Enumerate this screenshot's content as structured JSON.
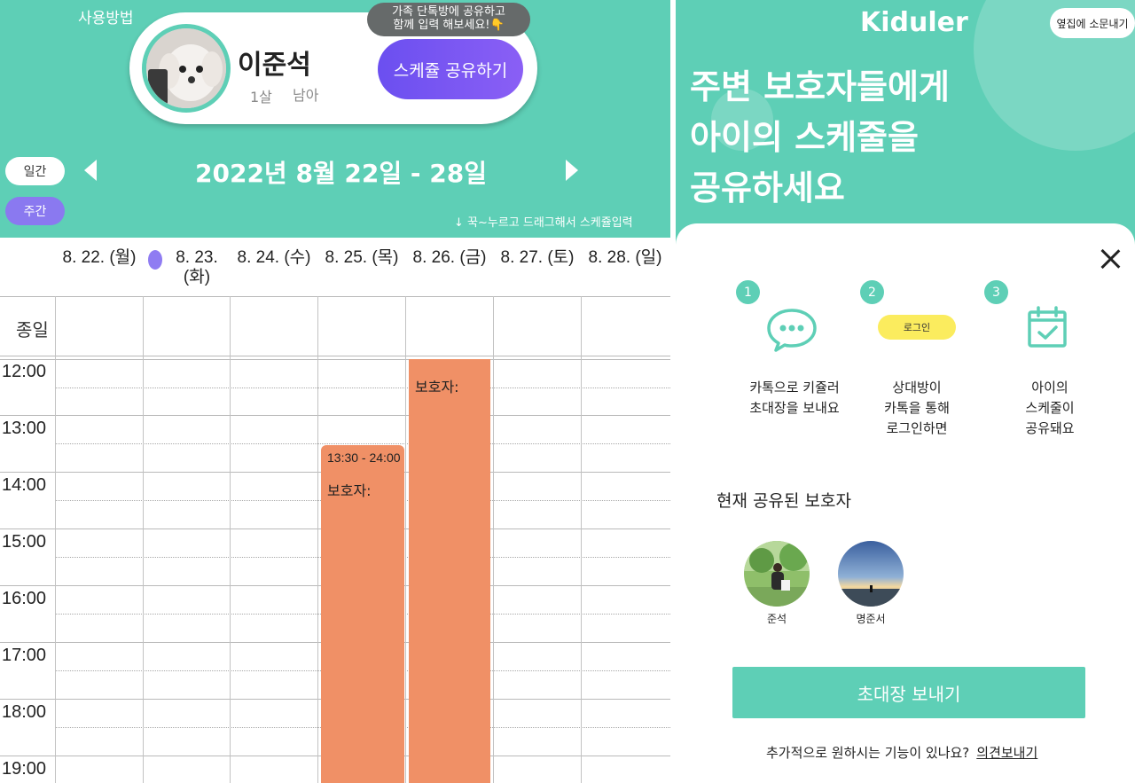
{
  "left": {
    "how_to": "사용방법",
    "tooltip": "가족 단톡방에 공유하고\n함께 입력 해보세요!👇",
    "child": {
      "name": "이준석",
      "age": "1살",
      "gender": "남아"
    },
    "share_button": "스케쥴 공유하기",
    "view_toggle": {
      "daily": "일간",
      "weekly": "주간"
    },
    "week_range": "2022년 8월 22일 - 28일",
    "drag_hint": "↓ 꾹~누르고 드래그해서 스케쥴입력",
    "days": [
      "8. 22. (월)",
      "8. 23.\n(화)",
      "8. 24. (수)",
      "8. 25. (목)",
      "8. 26. (금)",
      "8. 27. (토)",
      "8. 28. (일)"
    ],
    "all_day_label": "종일",
    "times": [
      "12:00",
      "13:00",
      "14:00",
      "15:00",
      "16:00",
      "17:00",
      "18:00",
      "19:00"
    ],
    "events": [
      {
        "time": "13:30 - 24:00",
        "title": "보호자:"
      },
      {
        "time": "",
        "title": "보호자:"
      }
    ],
    "colors": {
      "accent": "#5ecfb6",
      "purple": "#8a79f0",
      "event": "#f09066"
    }
  },
  "right": {
    "brand": "Kiduler",
    "rumor_button": "옆집에 소문내기",
    "hero": "주변 보호자들에게\n아이의 스케줄을\n공유하세요",
    "steps": [
      {
        "num": "1",
        "text": "카톡으로 키쥴러\n초대장을 보내요",
        "icon": "chat-bubble-icon"
      },
      {
        "num": "2",
        "text": "상대방이\n카톡을 통해\n로그인하면",
        "badge": "로그인"
      },
      {
        "num": "3",
        "text": "아이의\n스케줄이\n공유돼요",
        "icon": "calendar-check-icon"
      }
    ],
    "shared_title": "현재 공유된 보호자",
    "guardians": [
      {
        "name": "준석"
      },
      {
        "name": "명준서"
      }
    ],
    "invite_button": "초대장 보내기",
    "feedback_text": "추가적으로 원하시는 기능이 있나요?",
    "feedback_link": "의견보내기"
  }
}
